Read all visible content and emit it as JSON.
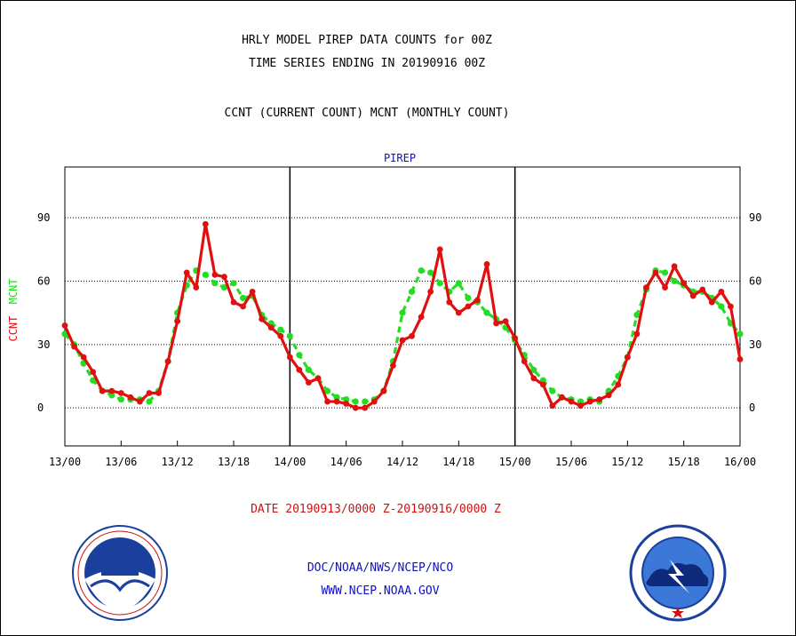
{
  "colors": {
    "ccnt": "#e01010",
    "mcnt": "#22dd22",
    "text": "#000000",
    "blue": "#1010c0"
  },
  "header": {
    "title_line1": "HRLY MODEL PIREP DATA COUNTS for 00Z",
    "title_line2": "TIME SERIES ENDING IN 20190916 00Z",
    "subtitle": "CCNT (CURRENT COUNT) MCNT (MONTHLY COUNT)"
  },
  "panel_label": "PIREP",
  "ylabel": {
    "ccnt": "CCNT",
    "mcnt": "MCNT"
  },
  "date_range": "DATE 20190913/0000 Z-20190916/0000 Z",
  "footer": {
    "org": "DOC/NOAA/NWS/NCEP/NCO",
    "url": "WWW.NCEP.NOAA.GOV"
  },
  "logos": {
    "left": "noaa-logo",
    "right": "national-weather-service-logo"
  },
  "chart_data": {
    "type": "line",
    "ylim": [
      -18,
      114
    ],
    "xlim": [
      0,
      72
    ],
    "y_ticks": [
      0,
      30,
      60,
      90
    ],
    "y_tick_labels": [
      "0",
      "30",
      "60",
      "90"
    ],
    "x_ticks": [
      0,
      6,
      12,
      18,
      24,
      30,
      36,
      42,
      48,
      54,
      60,
      66,
      72
    ],
    "x_tick_labels": [
      "13/00",
      "13/06",
      "13/12",
      "13/18",
      "14/00",
      "14/06",
      "14/12",
      "14/18",
      "15/00",
      "15/06",
      "15/12",
      "15/18",
      "16/00"
    ],
    "day_dividers": [
      24,
      48
    ],
    "grid": "horizontal",
    "series": [
      {
        "name": "CCNT",
        "color": "#e01010",
        "x": [
          0,
          1,
          2,
          3,
          4,
          5,
          6,
          7,
          8,
          9,
          10,
          11,
          12,
          13,
          14,
          15,
          16,
          17,
          18,
          19,
          20,
          21,
          22,
          23,
          24,
          25,
          26,
          27,
          28,
          29,
          30,
          31,
          32,
          33,
          34,
          35,
          36,
          37,
          38,
          39,
          40,
          41,
          42,
          43,
          44,
          45,
          46,
          47,
          48,
          49,
          50,
          51,
          52,
          53,
          54,
          55,
          56,
          57,
          58,
          59,
          60,
          61,
          62,
          63,
          64,
          65,
          66,
          67,
          68,
          69,
          70,
          71,
          72
        ],
        "values": [
          39,
          29,
          24,
          17,
          8,
          8,
          7,
          5,
          3,
          7,
          7,
          22,
          41,
          64,
          57,
          87,
          63,
          62,
          50,
          48,
          55,
          42,
          38,
          34,
          24,
          18,
          12,
          14,
          3,
          3,
          2,
          0,
          0,
          3,
          8,
          20,
          32,
          34,
          43,
          55,
          75,
          50,
          45,
          48,
          51,
          68,
          40,
          41,
          33,
          22,
          14,
          11,
          1,
          5,
          3,
          1,
          3,
          4,
          6,
          11,
          24,
          35,
          57,
          64,
          57,
          67,
          59,
          53,
          56,
          50,
          55,
          48,
          23
        ]
      },
      {
        "name": "MCNT",
        "color": "#22dd22",
        "x": [
          0,
          1,
          2,
          3,
          4,
          5,
          6,
          7,
          8,
          9,
          10,
          11,
          12,
          13,
          14,
          15,
          16,
          17,
          18,
          19,
          20,
          21,
          22,
          23,
          24,
          25,
          26,
          27,
          28,
          29,
          30,
          31,
          32,
          33,
          34,
          35,
          36,
          37,
          38,
          39,
          40,
          41,
          42,
          43,
          44,
          45,
          46,
          47,
          48,
          49,
          50,
          51,
          52,
          53,
          54,
          55,
          56,
          57,
          58,
          59,
          60,
          61,
          62,
          63,
          64,
          65,
          66,
          67,
          68,
          69,
          70,
          71,
          72
        ],
        "values": [
          35,
          30,
          21,
          13,
          8,
          6,
          4,
          4,
          4,
          3,
          8,
          22,
          45,
          58,
          65,
          63,
          59,
          57,
          59,
          52,
          53,
          44,
          40,
          37,
          34,
          25,
          18,
          14,
          8,
          5,
          4,
          3,
          3,
          4,
          8,
          22,
          45,
          55,
          65,
          64,
          59,
          55,
          59,
          52,
          50,
          45,
          42,
          38,
          32,
          25,
          18,
          13,
          8,
          5,
          4,
          3,
          4,
          3,
          8,
          15,
          24,
          44,
          56,
          65,
          64,
          60,
          58,
          55,
          55,
          52,
          48,
          40,
          35
        ]
      }
    ]
  }
}
